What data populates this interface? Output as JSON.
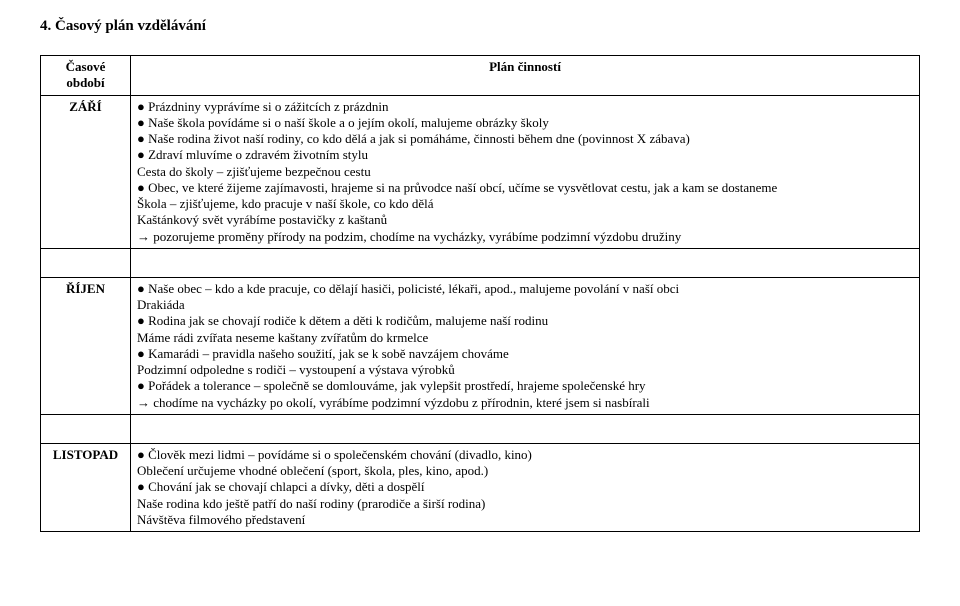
{
  "section_title": "4. Časový plán vzdělávání",
  "table": {
    "header": {
      "period_line1": "Časové",
      "period_line2": "období",
      "plan": "Plán činností"
    },
    "rows": [
      {
        "period": "ZÁŘÍ",
        "lines": [
          "● Prázdniny vyprávíme si o zážitcích z prázdnin",
          "● Naše škola povídáme si o naší škole a o jejím okolí, malujeme obrázky školy",
          "● Naše rodina život naší rodiny, co kdo dělá a jak si pomáháme, činnosti během dne (povinnost X zábava)",
          "● Zdraví mluvíme o zdravém životním stylu",
          "   Cesta do školy – zjišťujeme bezpečnou cestu",
          "● Obec, ve které žijeme zajímavosti, hrajeme si na průvodce naší obcí, učíme se vysvětlovat cestu, jak a kam se dostaneme",
          "   Škola – zjišťujeme, kdo pracuje v naší škole, co kdo dělá",
          "   Kaštánkový svět vyrábíme postavičky z kaštanů",
          "→ pozorujeme proměny přírody na podzim, chodíme na vycházky, vyrábíme podzimní výzdobu družiny"
        ]
      },
      {
        "period": "ŘÍJEN",
        "lines": [
          "● Naše obec – kdo a kde pracuje, co dělají hasiči, policisté, lékaři, apod., malujeme povolání v naší obci",
          "   Drakiáda",
          "● Rodina jak se chovají rodiče k dětem a děti k rodičům, malujeme naší rodinu",
          "   Máme rádi zvířata neseme kaštany zvířatům do krmelce",
          "● Kamarádi – pravidla našeho soužití, jak se k sobě navzájem chováme",
          "   Podzimní odpoledne s rodiči – vystoupení a výstava výrobků",
          "● Pořádek a tolerance – společně se domlouváme, jak vylepšit prostředí, hrajeme společenské hry",
          "→ chodíme na vycházky po okolí, vyrábíme podzimní výzdobu z přírodnin, které jsem si nasbírali"
        ]
      },
      {
        "period": "LISTOPAD",
        "lines": [
          "● Člověk mezi lidmi – povídáme si o společenském chování (divadlo, kino)",
          "   Oblečení určujeme vhodné oblečení (sport, škola, ples, kino, apod.)",
          "● Chování jak se chovají chlapci a dívky, děti a dospělí",
          "   Naše rodina kdo ještě patří do naší rodiny (prarodiče a širší rodina)",
          "   Návštěva filmového představení"
        ]
      }
    ]
  }
}
